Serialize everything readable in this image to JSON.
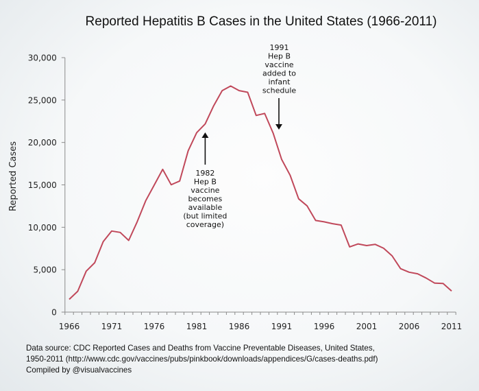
{
  "chart_data": {
    "type": "line",
    "title": "Reported Hepatitis B Cases in the United States (1966-2011)",
    "xlabel": "",
    "ylabel": "Reported Cases",
    "ylim": [
      0,
      30000
    ],
    "yticks": [
      0,
      5000,
      10000,
      15000,
      20000,
      25000,
      30000
    ],
    "ytick_labels": [
      "0",
      "5,000",
      "10,000",
      "15,000",
      "20,000",
      "25,000",
      "30,000"
    ],
    "xticks_labeled": [
      1966,
      1971,
      1976,
      1981,
      1986,
      1991,
      1996,
      2001,
      2006,
      2011
    ],
    "grid": false,
    "legend": "none",
    "line_color": "#c0485a",
    "series": [
      {
        "name": "Reported Hepatitis B Cases",
        "x": [
          1966,
          1967,
          1968,
          1969,
          1970,
          1971,
          1972,
          1973,
          1974,
          1975,
          1976,
          1977,
          1978,
          1979,
          1980,
          1981,
          1982,
          1983,
          1984,
          1985,
          1986,
          1987,
          1988,
          1989,
          1990,
          1991,
          1992,
          1993,
          1994,
          1995,
          1996,
          1997,
          1998,
          1999,
          2000,
          2001,
          2002,
          2003,
          2004,
          2005,
          2006,
          2007,
          2008,
          2009,
          2010,
          2011
        ],
        "values": [
          1500,
          2460,
          4830,
          5820,
          8310,
          9560,
          9400,
          8450,
          10650,
          13120,
          14970,
          16830,
          15020,
          15450,
          19020,
          21150,
          22180,
          24320,
          26110,
          26650,
          26110,
          25920,
          23180,
          23420,
          21100,
          18000,
          16130,
          13360,
          12520,
          10800,
          10640,
          10420,
          10260,
          7690,
          8040,
          7840,
          7990,
          7530,
          6630,
          5120,
          4710,
          4520,
          4020,
          3420,
          3370,
          2480
        ]
      }
    ],
    "annotations": [
      {
        "year": 1982,
        "lines": [
          "1982",
          "Hep B",
          "vaccine",
          "becomes",
          "available",
          "(but limited",
          "coverage)"
        ],
        "arrow": "up"
      },
      {
        "year": 1991,
        "lines": [
          "1991",
          "Hep B",
          "vaccine",
          "added to",
          "infant",
          "schedule"
        ],
        "arrow": "down"
      }
    ]
  },
  "footer": {
    "line1": "Data source: CDC Reported Cases and Deaths from Vaccine Preventable Diseases, United States,",
    "line2": "1950-2011 (http://www.cdc.gov/vaccines/pubs/pinkbook/downloads/appendices/G/cases-deaths.pdf)",
    "line3": "Compiled by @visualvaccines"
  }
}
